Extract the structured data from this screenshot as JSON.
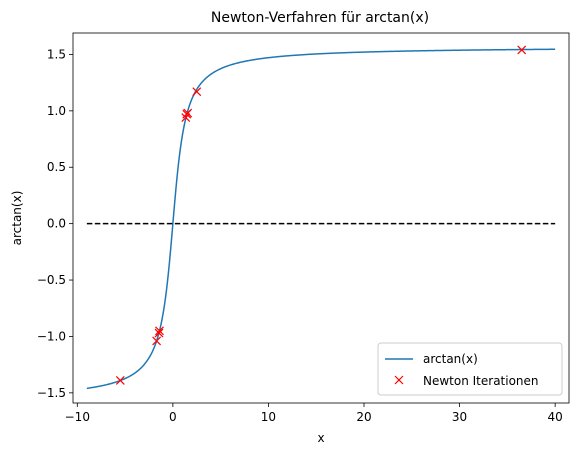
{
  "chart_data": {
    "type": "line",
    "title": "Newton-Verfahren für arctan(x)",
    "xlabel": "x",
    "ylabel": "arctan(x)",
    "xlim": [
      -10.45,
      41.45
    ],
    "ylim": [
      -1.59,
      1.69
    ],
    "xticks": [
      -10,
      0,
      10,
      20,
      30,
      40
    ],
    "yticks": [
      -1.5,
      -1.0,
      -0.5,
      0.0,
      0.5,
      1.0,
      1.5
    ],
    "xtick_labels": [
      "−10",
      "0",
      "10",
      "20",
      "30",
      "40"
    ],
    "ytick_labels": [
      "−1.5",
      "−1.0",
      "−0.5",
      "0.0",
      "0.5",
      "1.0",
      "1.5"
    ],
    "grid": false,
    "legend_position": "lower-right",
    "series": [
      {
        "name": "arctan(x)",
        "kind": "line",
        "color": "#1f77b4",
        "function": "arctan",
        "x_range": [
          -9,
          40
        ]
      },
      {
        "name": "",
        "kind": "dashed-line",
        "color": "#000000",
        "x": [
          -9,
          40
        ],
        "y": [
          0,
          0
        ]
      },
      {
        "name": "Newton Iterationen",
        "kind": "markers",
        "marker": "x",
        "color": "#ff0000",
        "x": [
          -5.5,
          -1.7,
          -1.45,
          -1.4,
          1.35,
          1.45,
          1.55,
          2.5,
          36.5
        ],
        "y": [
          -1.39,
          -1.04,
          -0.97,
          -0.95,
          0.94,
          0.97,
          0.98,
          1.17,
          1.54
        ]
      }
    ]
  }
}
